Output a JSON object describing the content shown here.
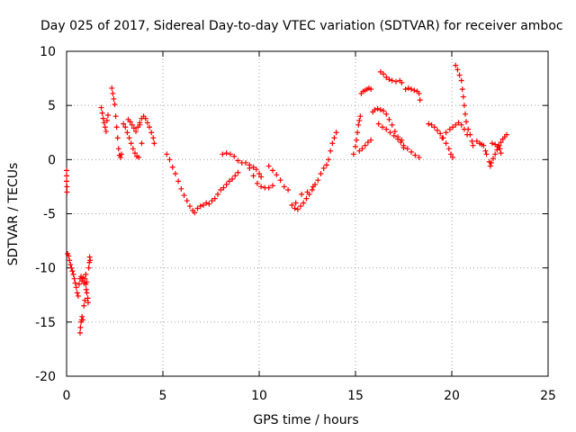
{
  "chart_data": {
    "type": "scatter",
    "title": "Day 025 of 2017, Sidereal Day-to-day VTEC variation (SDTVAR) for receiver amboc",
    "xlabel": "GPS time / hours",
    "ylabel": "SDTVAR / TECUs",
    "xlim": [
      0,
      25
    ],
    "ylim": [
      -20,
      10
    ],
    "xticks": [
      0,
      5,
      10,
      15,
      20,
      25
    ],
    "xtick_labels": [
      "0",
      "5",
      "10",
      "15",
      "20",
      "25"
    ],
    "yticks": [
      -20,
      -15,
      -10,
      -5,
      0,
      5,
      10
    ],
    "ytick_labels": [
      "-20",
      "-15",
      "-10",
      "-5",
      "0",
      "5",
      "10"
    ],
    "grid": true,
    "marker": "+",
    "marker_color": "#ff0000",
    "series": [
      {
        "name": "SDTVAR",
        "points": [
          [
            0.0,
            -1.0
          ],
          [
            0.0,
            -1.5
          ],
          [
            0.0,
            -2.0
          ],
          [
            0.02,
            -2.5
          ],
          [
            0.02,
            -3.0
          ],
          [
            0.05,
            -8.7
          ],
          [
            0.1,
            -8.9
          ],
          [
            0.15,
            -9.3
          ],
          [
            0.2,
            -9.7
          ],
          [
            0.25,
            -10.0
          ],
          [
            0.3,
            -10.3
          ],
          [
            0.35,
            -10.6
          ],
          [
            0.4,
            -11.0
          ],
          [
            0.45,
            -11.4
          ],
          [
            0.5,
            -11.8
          ],
          [
            0.55,
            -12.3
          ],
          [
            0.6,
            -12.6
          ],
          [
            0.65,
            -11.5
          ],
          [
            0.7,
            -11.0
          ],
          [
            0.75,
            -10.8
          ],
          [
            0.8,
            -11.2
          ],
          [
            0.85,
            -10.9
          ],
          [
            0.9,
            -11.4
          ],
          [
            0.95,
            -11.0
          ],
          [
            1.0,
            -10.6
          ],
          [
            1.05,
            -11.3
          ],
          [
            0.7,
            -16.0
          ],
          [
            0.72,
            -15.5
          ],
          [
            0.75,
            -15.0
          ],
          [
            0.78,
            -14.8
          ],
          [
            0.8,
            -14.5
          ],
          [
            0.85,
            -14.8
          ],
          [
            0.9,
            -13.5
          ],
          [
            0.95,
            -13.0
          ],
          [
            1.0,
            -11.5
          ],
          [
            1.02,
            -12.0
          ],
          [
            1.05,
            -12.3
          ],
          [
            1.1,
            -12.8
          ],
          [
            1.12,
            -13.2
          ],
          [
            1.15,
            -10.0
          ],
          [
            1.18,
            -9.5
          ],
          [
            1.2,
            -9.0
          ],
          [
            1.22,
            -9.3
          ],
          [
            1.8,
            4.8
          ],
          [
            1.85,
            4.3
          ],
          [
            1.9,
            3.8
          ],
          [
            1.95,
            3.4
          ],
          [
            2.0,
            3.0
          ],
          [
            2.05,
            2.6
          ],
          [
            2.1,
            3.6
          ],
          [
            2.15,
            4.1
          ],
          [
            2.35,
            6.6
          ],
          [
            2.4,
            6.1
          ],
          [
            2.45,
            5.6
          ],
          [
            2.5,
            5.1
          ],
          [
            2.55,
            4.0
          ],
          [
            2.6,
            3.0
          ],
          [
            2.65,
            2.0
          ],
          [
            2.7,
            1.0
          ],
          [
            2.75,
            0.4
          ],
          [
            2.8,
            0.2
          ],
          [
            2.85,
            0.5
          ],
          [
            2.95,
            3.3
          ],
          [
            3.05,
            3.0
          ],
          [
            3.15,
            2.5
          ],
          [
            3.25,
            2.0
          ],
          [
            3.35,
            1.5
          ],
          [
            3.45,
            1.0
          ],
          [
            3.55,
            0.6
          ],
          [
            3.65,
            0.3
          ],
          [
            3.75,
            0.2
          ],
          [
            3.3,
            3.5
          ],
          [
            3.4,
            3.2
          ],
          [
            3.5,
            2.9
          ],
          [
            3.6,
            2.6
          ],
          [
            3.7,
            3.0
          ],
          [
            3.8,
            3.4
          ],
          [
            3.9,
            3.8
          ],
          [
            4.0,
            4.0
          ],
          [
            4.1,
            3.8
          ],
          [
            4.2,
            3.4
          ],
          [
            4.3,
            3.0
          ],
          [
            4.4,
            2.5
          ],
          [
            4.5,
            2.0
          ],
          [
            4.55,
            1.5
          ],
          [
            3.2,
            3.7
          ],
          [
            3.8,
            3.2
          ],
          [
            3.9,
            1.5
          ],
          [
            5.2,
            0.5
          ],
          [
            5.35,
            0.0
          ],
          [
            5.5,
            -0.7
          ],
          [
            5.65,
            -1.3
          ],
          [
            5.8,
            -2.0
          ],
          [
            5.95,
            -2.7
          ],
          [
            6.1,
            -3.3
          ],
          [
            6.25,
            -3.8
          ],
          [
            6.4,
            -4.3
          ],
          [
            6.55,
            -4.7
          ],
          [
            6.65,
            -4.9
          ],
          [
            6.8,
            -4.5
          ],
          [
            6.95,
            -4.3
          ],
          [
            7.1,
            -4.2
          ],
          [
            7.25,
            -4.0
          ],
          [
            7.4,
            -4.1
          ],
          [
            7.55,
            -3.8
          ],
          [
            7.7,
            -3.6
          ],
          [
            7.85,
            -3.2
          ],
          [
            8.0,
            -2.8
          ],
          [
            8.15,
            -2.6
          ],
          [
            8.3,
            -2.3
          ],
          [
            8.45,
            -2.0
          ],
          [
            8.6,
            -1.8
          ],
          [
            8.75,
            -1.5
          ],
          [
            8.9,
            -1.2
          ],
          [
            8.1,
            0.5
          ],
          [
            8.3,
            0.6
          ],
          [
            8.5,
            0.5
          ],
          [
            8.7,
            0.3
          ],
          [
            8.9,
            -0.1
          ],
          [
            9.1,
            -0.3
          ],
          [
            9.3,
            -0.3
          ],
          [
            9.5,
            -0.5
          ],
          [
            9.7,
            -0.7
          ],
          [
            9.85,
            -0.9
          ],
          [
            10.0,
            -1.3
          ],
          [
            10.1,
            -1.6
          ],
          [
            9.5,
            -0.8
          ],
          [
            9.7,
            -1.5
          ],
          [
            9.9,
            -2.2
          ],
          [
            10.1,
            -2.5
          ],
          [
            10.3,
            -2.6
          ],
          [
            10.5,
            -2.6
          ],
          [
            10.7,
            -2.4
          ],
          [
            10.5,
            -0.6
          ],
          [
            10.7,
            -1.0
          ],
          [
            10.9,
            -1.4
          ],
          [
            11.1,
            -1.9
          ],
          [
            11.3,
            -2.5
          ],
          [
            11.5,
            -2.8
          ],
          [
            11.7,
            -4.2
          ],
          [
            11.85,
            -4.5
          ],
          [
            12.0,
            -4.6
          ],
          [
            12.15,
            -4.3
          ],
          [
            12.3,
            -4.0
          ],
          [
            12.45,
            -3.6
          ],
          [
            12.6,
            -3.2
          ],
          [
            12.75,
            -2.8
          ],
          [
            12.9,
            -2.3
          ],
          [
            13.05,
            -1.9
          ],
          [
            13.2,
            -1.3
          ],
          [
            13.35,
            -0.8
          ],
          [
            11.9,
            -4.0
          ],
          [
            12.2,
            -3.2
          ],
          [
            12.5,
            -3.0
          ],
          [
            12.8,
            -2.5
          ],
          [
            13.5,
            -0.5
          ],
          [
            13.6,
            0.0
          ],
          [
            13.7,
            0.8
          ],
          [
            13.8,
            1.5
          ],
          [
            13.9,
            2.0
          ],
          [
            14.0,
            2.5
          ],
          [
            14.9,
            0.5
          ],
          [
            15.0,
            1.2
          ],
          [
            15.05,
            1.8
          ],
          [
            15.1,
            2.5
          ],
          [
            15.15,
            3.2
          ],
          [
            15.2,
            3.6
          ],
          [
            15.25,
            4.0
          ],
          [
            15.3,
            6.1
          ],
          [
            15.4,
            6.3
          ],
          [
            15.5,
            6.4
          ],
          [
            15.6,
            6.5
          ],
          [
            15.7,
            6.6
          ],
          [
            15.8,
            6.5
          ],
          [
            15.2,
            0.8
          ],
          [
            15.35,
            1.0
          ],
          [
            15.5,
            1.3
          ],
          [
            15.65,
            1.6
          ],
          [
            15.8,
            1.8
          ],
          [
            15.9,
            4.4
          ],
          [
            16.0,
            4.6
          ],
          [
            16.15,
            4.7
          ],
          [
            16.3,
            4.6
          ],
          [
            16.45,
            4.5
          ],
          [
            16.6,
            4.2
          ],
          [
            16.75,
            3.7
          ],
          [
            16.9,
            3.2
          ],
          [
            17.05,
            2.6
          ],
          [
            17.2,
            2.1
          ],
          [
            17.35,
            1.6
          ],
          [
            17.5,
            1.1
          ],
          [
            16.2,
            3.3
          ],
          [
            16.4,
            3.0
          ],
          [
            16.6,
            2.8
          ],
          [
            16.8,
            2.5
          ],
          [
            17.0,
            2.2
          ],
          [
            17.2,
            1.9
          ],
          [
            17.4,
            1.8
          ],
          [
            16.3,
            8.1
          ],
          [
            16.45,
            7.9
          ],
          [
            16.6,
            7.6
          ],
          [
            16.75,
            7.4
          ],
          [
            16.9,
            7.3
          ],
          [
            17.1,
            7.2
          ],
          [
            17.3,
            7.3
          ],
          [
            17.4,
            7.1
          ],
          [
            17.6,
            6.5
          ],
          [
            17.75,
            6.6
          ],
          [
            17.9,
            6.5
          ],
          [
            18.05,
            6.4
          ],
          [
            18.2,
            6.3
          ],
          [
            18.3,
            6.1
          ],
          [
            18.35,
            5.5
          ],
          [
            17.5,
            1.3
          ],
          [
            17.7,
            1.0
          ],
          [
            17.9,
            0.7
          ],
          [
            18.1,
            0.4
          ],
          [
            18.3,
            0.2
          ],
          [
            18.8,
            3.3
          ],
          [
            18.95,
            3.2
          ],
          [
            19.1,
            3.0
          ],
          [
            19.25,
            2.7
          ],
          [
            19.4,
            2.4
          ],
          [
            19.55,
            2.0
          ],
          [
            19.7,
            1.5
          ],
          [
            19.85,
            1.0
          ],
          [
            19.95,
            0.5
          ],
          [
            20.05,
            0.2
          ],
          [
            19.5,
            2.0
          ],
          [
            19.7,
            2.5
          ],
          [
            19.9,
            2.8
          ],
          [
            20.05,
            3.0
          ],
          [
            20.2,
            3.2
          ],
          [
            20.35,
            3.4
          ],
          [
            20.5,
            3.2
          ],
          [
            20.65,
            2.8
          ],
          [
            20.8,
            2.3
          ],
          [
            20.2,
            8.7
          ],
          [
            20.3,
            8.3
          ],
          [
            20.4,
            7.8
          ],
          [
            20.5,
            7.3
          ],
          [
            20.55,
            6.5
          ],
          [
            20.6,
            5.8
          ],
          [
            20.65,
            5.0
          ],
          [
            20.7,
            4.2
          ],
          [
            20.75,
            3.5
          ],
          [
            20.85,
            2.8
          ],
          [
            20.95,
            2.3
          ],
          [
            21.05,
            1.7
          ],
          [
            21.1,
            1.3
          ],
          [
            21.3,
            1.7
          ],
          [
            21.45,
            1.5
          ],
          [
            21.55,
            1.4
          ],
          [
            21.65,
            1.3
          ],
          [
            21.75,
            0.8
          ],
          [
            21.8,
            0.5
          ],
          [
            21.95,
            -0.2
          ],
          [
            22.0,
            -0.6
          ],
          [
            22.05,
            -0.3
          ],
          [
            22.15,
            0.1
          ],
          [
            22.25,
            0.5
          ],
          [
            22.35,
            0.9
          ],
          [
            22.45,
            1.3
          ],
          [
            22.55,
            1.6
          ],
          [
            22.65,
            1.9
          ],
          [
            22.75,
            2.1
          ],
          [
            22.85,
            2.3
          ],
          [
            22.1,
            1.5
          ],
          [
            22.25,
            1.4
          ],
          [
            22.4,
            1.2
          ],
          [
            22.5,
            1.0
          ],
          [
            22.55,
            0.6
          ]
        ]
      }
    ]
  }
}
